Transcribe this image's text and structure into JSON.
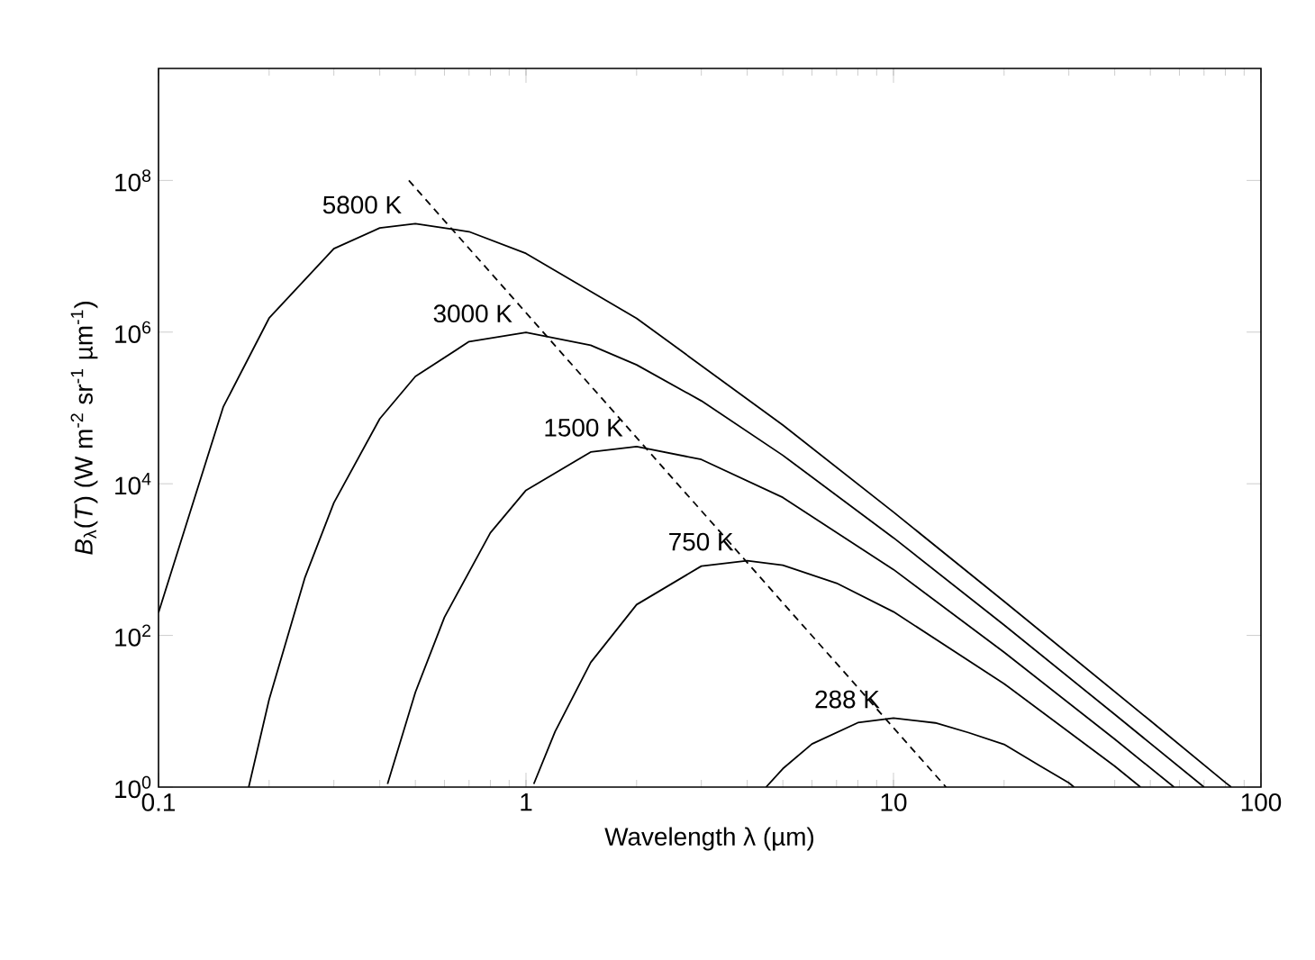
{
  "chart_data": {
    "type": "line",
    "log": "xy",
    "xlabel": "Wavelength λ (µm)",
    "ylabel": "*B*$_{λ}$(*T*) (W m$^{-2}$ sr$^{-1}$ µm$^{-1}$)",
    "xlim": [
      0.1,
      100
    ],
    "ylim": [
      1,
      3000000000
    ],
    "xticks": [
      0.1,
      1,
      10,
      100
    ],
    "yticks": [
      {
        "value": 1,
        "label": "10$^{0}$"
      },
      {
        "value": 100,
        "label": "10$^{2}$"
      },
      {
        "value": 10000,
        "label": "10$^{4}$"
      },
      {
        "value": 1000000,
        "label": "10$^{6}$"
      },
      {
        "value": 100000000,
        "label": "10$^{8}$"
      }
    ],
    "series": [
      {
        "name": "5800 K",
        "color": "#000000",
        "x": [
          0.1,
          0.15,
          0.2,
          0.3,
          0.4,
          0.5,
          0.7,
          1,
          2,
          5,
          10,
          20,
          50,
          80,
          83
        ],
        "values": [
          200,
          103000,
          1530000,
          12600000,
          23600000,
          26900000,
          21100000,
          10900000,
          1520000,
          59400,
          4230,
          282,
          7.5,
          1.15,
          1.0
        ]
      },
      {
        "name": "3000 K",
        "color": "#000000",
        "x": [
          0.176,
          0.2,
          0.25,
          0.3,
          0.4,
          0.5,
          0.7,
          1,
          1.5,
          2,
          3,
          5,
          10,
          20,
          40,
          70
        ],
        "values": [
          1.0,
          14.3,
          570,
          5600,
          72000,
          260000,
          750000,
          990000,
          670000,
          370000,
          124000,
          23700,
          1940,
          137,
          9.1,
          1.0
        ]
      },
      {
        "name": "1500 K",
        "color": "#000000",
        "x": [
          0.42,
          0.5,
          0.6,
          0.8,
          1,
          1.5,
          2,
          3,
          5,
          10,
          20,
          40,
          58
        ],
        "values": [
          1.1,
          17.8,
          174,
          2260,
          8200,
          26200,
          31000,
          20900,
          6600,
          740,
          60,
          4.29,
          1.0
        ]
      },
      {
        "name": "750 K",
        "color": "#000000",
        "x": [
          1.05,
          1.2,
          1.5,
          2,
          3,
          4,
          5,
          7,
          10,
          20,
          40,
          47
        ],
        "values": [
          1.1,
          5.4,
          44,
          255,
          820,
          969,
          841,
          489,
          205,
          23.1,
          1.89,
          1.0
        ]
      },
      {
        "name": "288 K",
        "color": "#000000",
        "x": [
          4.5,
          5,
          6,
          8,
          10,
          13,
          16,
          20,
          25,
          30,
          31
        ],
        "values": [
          1.0,
          1.75,
          3.7,
          7.07,
          8.11,
          7.02,
          5.23,
          3.66,
          1.91,
          1.14,
          1.0
        ]
      },
      {
        "color": "#000000",
        "line_style": "dashed",
        "x": [
          0.48,
          13.9
        ],
        "values": [
          100000000,
          1.0
        ]
      }
    ]
  }
}
